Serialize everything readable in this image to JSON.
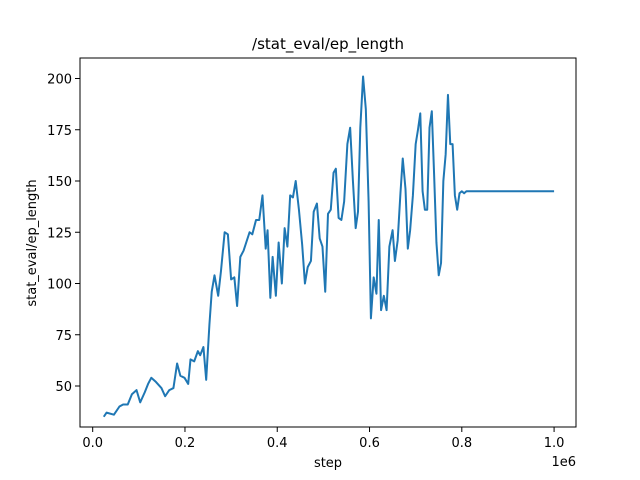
{
  "chart_data": {
    "type": "line",
    "title": "/stat_eval/ep_length",
    "xlabel": "step",
    "ylabel": "stat_eval/ep_length",
    "x_offset_label": "1e6",
    "xlim": [
      -0.0275,
      1.0475
    ],
    "ylim": [
      30,
      210
    ],
    "xticks": [
      0.0,
      0.2,
      0.4,
      0.6,
      0.8,
      1.0
    ],
    "xtick_labels": [
      "0.0",
      "0.2",
      "0.4",
      "0.6",
      "0.8",
      "1.0"
    ],
    "yticks": [
      50,
      75,
      100,
      125,
      150,
      175,
      200
    ],
    "ytick_labels": [
      "50",
      "75",
      "100",
      "125",
      "150",
      "175",
      "200"
    ],
    "grid": false,
    "legend": "none",
    "series": [
      {
        "color": "#1f77b4",
        "x": [
          0.024,
          0.03,
          0.046,
          0.058,
          0.066,
          0.076,
          0.085,
          0.095,
          0.103,
          0.113,
          0.12,
          0.127,
          0.137,
          0.149,
          0.157,
          0.166,
          0.175,
          0.183,
          0.19,
          0.199,
          0.207,
          0.212,
          0.22,
          0.228,
          0.233,
          0.24,
          0.246,
          0.253,
          0.258,
          0.264,
          0.272,
          0.278,
          0.286,
          0.293,
          0.3,
          0.307,
          0.313,
          0.32,
          0.327,
          0.34,
          0.346,
          0.354,
          0.361,
          0.368,
          0.375,
          0.379,
          0.385,
          0.39,
          0.397,
          0.403,
          0.41,
          0.416,
          0.422,
          0.428,
          0.434,
          0.44,
          0.447,
          0.454,
          0.46,
          0.466,
          0.473,
          0.479,
          0.486,
          0.492,
          0.498,
          0.504,
          0.51,
          0.516,
          0.522,
          0.527,
          0.533,
          0.539,
          0.545,
          0.552,
          0.558,
          0.564,
          0.57,
          0.575,
          0.58,
          0.586,
          0.592,
          0.598,
          0.603,
          0.609,
          0.615,
          0.62,
          0.625,
          0.631,
          0.637,
          0.643,
          0.65,
          0.655,
          0.661,
          0.667,
          0.672,
          0.678,
          0.683,
          0.688,
          0.694,
          0.7,
          0.705,
          0.71,
          0.715,
          0.72,
          0.725,
          0.73,
          0.735,
          0.74,
          0.745,
          0.75,
          0.755,
          0.76,
          0.765,
          0.77,
          0.775,
          0.78,
          0.785,
          0.79,
          0.795,
          0.8,
          0.805,
          0.81,
          0.815,
          0.82,
          0.825,
          0.83,
          0.835,
          0.84,
          0.845,
          0.85,
          0.855,
          0.86,
          0.865,
          0.87,
          0.875,
          0.88,
          0.885,
          0.89,
          0.895,
          0.9,
          0.905,
          0.91,
          0.915,
          0.92,
          0.925,
          0.93,
          0.935,
          0.94,
          0.945,
          0.95,
          0.955,
          0.96,
          0.965,
          0.97,
          0.975,
          0.98,
          0.985,
          0.99,
          0.995,
          1.0
        ],
        "y": [
          35,
          37,
          36,
          40,
          41,
          41,
          46,
          48,
          42,
          47,
          51,
          54,
          52,
          49,
          45,
          48,
          49,
          61,
          55,
          54,
          51,
          63,
          62,
          67,
          65,
          69,
          53,
          80,
          96,
          104,
          94,
          106,
          125,
          124,
          102,
          103,
          89,
          113,
          116,
          125,
          124,
          131,
          131,
          143,
          117,
          126,
          93,
          113,
          94,
          120,
          100,
          127,
          118,
          143,
          142,
          150,
          136,
          119,
          100,
          108,
          111,
          135,
          139,
          122,
          118,
          96,
          134,
          136,
          154,
          156,
          132,
          131,
          140,
          168,
          176,
          150,
          127,
          135,
          176,
          201,
          185,
          140,
          83,
          103,
          95,
          131,
          87,
          94,
          87,
          118,
          126,
          111,
          121,
          144,
          161,
          146,
          117,
          126,
          143,
          168,
          175,
          183,
          145,
          136,
          136,
          176,
          184,
          153,
          120,
          104,
          110,
          150,
          163,
          192,
          168,
          168,
          143,
          136,
          144,
          145,
          144,
          145,
          145,
          145,
          145,
          145,
          145,
          145,
          145,
          145,
          145,
          145,
          145,
          145,
          145,
          145,
          145,
          145,
          145,
          145,
          145,
          145,
          145,
          145,
          145,
          145,
          145,
          145,
          145,
          145,
          145,
          145,
          145,
          145,
          145,
          145,
          145,
          145,
          145,
          145
        ]
      }
    ]
  }
}
